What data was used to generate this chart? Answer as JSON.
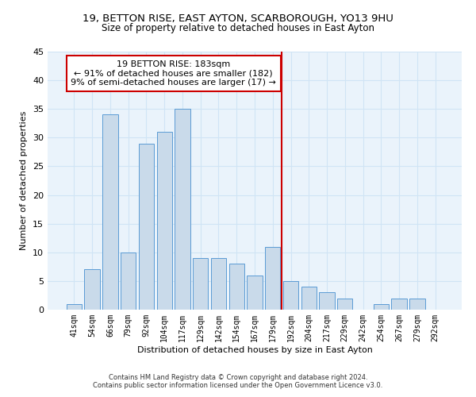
{
  "title1": "19, BETTON RISE, EAST AYTON, SCARBOROUGH, YO13 9HU",
  "title2": "Size of property relative to detached houses in East Ayton",
  "xlabel": "Distribution of detached houses by size in East Ayton",
  "ylabel": "Number of detached properties",
  "footnote1": "Contains HM Land Registry data © Crown copyright and database right 2024.",
  "footnote2": "Contains public sector information licensed under the Open Government Licence v3.0.",
  "bin_labels": [
    "41sqm",
    "54sqm",
    "66sqm",
    "79sqm",
    "92sqm",
    "104sqm",
    "117sqm",
    "129sqm",
    "142sqm",
    "154sqm",
    "167sqm",
    "179sqm",
    "192sqm",
    "204sqm",
    "217sqm",
    "229sqm",
    "242sqm",
    "254sqm",
    "267sqm",
    "279sqm",
    "292sqm"
  ],
  "bar_values": [
    1,
    7,
    34,
    10,
    29,
    31,
    35,
    9,
    9,
    8,
    6,
    11,
    5,
    4,
    3,
    2,
    0,
    1,
    2,
    2,
    0
  ],
  "bar_color": "#c9daea",
  "bar_edge_color": "#5b9bd5",
  "vline_x": 11.5,
  "vline_color": "#cc0000",
  "annotation_text": "19 BETTON RISE: 183sqm\n← 91% of detached houses are smaller (182)\n9% of semi-detached houses are larger (17) →",
  "annotation_box_color": "#cc0000",
  "ylim": [
    0,
    45
  ],
  "yticks": [
    0,
    5,
    10,
    15,
    20,
    25,
    30,
    35,
    40,
    45
  ],
  "grid_color": "#d0e4f5",
  "background_color": "#eaf3fb",
  "bar_width": 0.85
}
